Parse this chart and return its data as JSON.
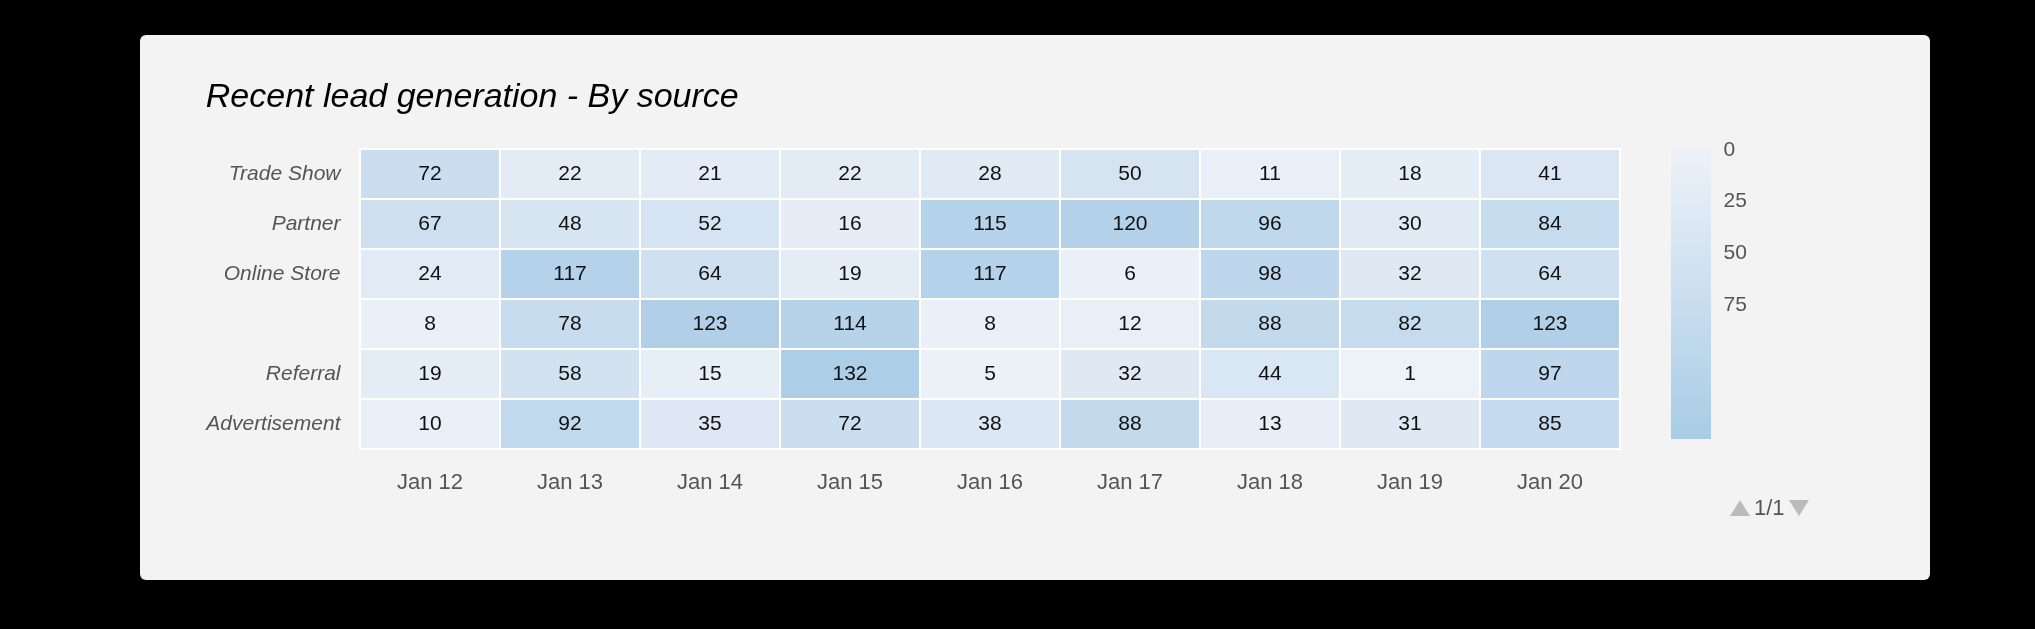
{
  "chart_data": {
    "type": "heatmap",
    "title": "Recent lead generation - By source",
    "categories": [
      "Jan 12",
      "Jan 13",
      "Jan 14",
      "Jan 15",
      "Jan 16",
      "Jan 17",
      "Jan 18",
      "Jan 19",
      "Jan 20"
    ],
    "y_categories": [
      "Trade Show",
      "Partner",
      "Online Store",
      null,
      "Referral",
      "Advertisement"
    ],
    "cells": [
      [
        72,
        22,
        21,
        22,
        28,
        50,
        11,
        18,
        41
      ],
      [
        67,
        48,
        52,
        16,
        115,
        120,
        96,
        30,
        84
      ],
      [
        24,
        117,
        64,
        19,
        117,
        6,
        98,
        32,
        64
      ],
      [
        8,
        78,
        123,
        114,
        8,
        12,
        88,
        82,
        123
      ],
      [
        19,
        58,
        15,
        132,
        5,
        32,
        44,
        1,
        97
      ],
      [
        10,
        92,
        35,
        72,
        38,
        88,
        13,
        31,
        85
      ]
    ],
    "colors": [
      "#edf2f8",
      "#a8cce6"
    ],
    "clim": [
      0,
      140
    ],
    "cticks": [
      0,
      25,
      50,
      75
    ],
    "data_labels": true,
    "annotations": [
      "1/1"
    ]
  }
}
